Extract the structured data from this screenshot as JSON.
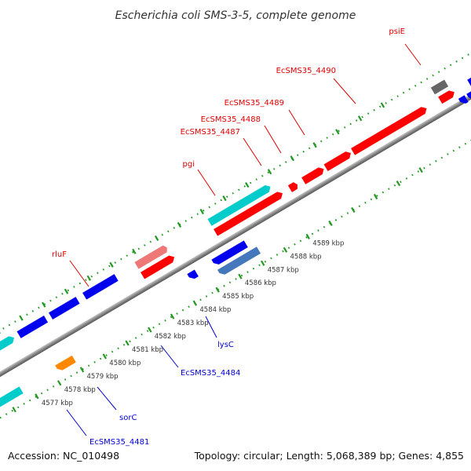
{
  "title": "Escherichia coli SMS-3-5, complete genome",
  "footer": {
    "accession": "Accession: NC_010498",
    "summary": "Topology: circular; Length: 5,068,389 bp; Genes: 4,855"
  },
  "kbp_labels": [
    "4577 kbp",
    "4578 kbp",
    "4579 kbp",
    "4580 kbp",
    "4581 kbp",
    "4582 kbp",
    "4583 kbp",
    "4584 kbp",
    "4585 kbp",
    "4586 kbp",
    "4587 kbp",
    "4588 kbp",
    "4589 kbp"
  ],
  "upper_labels": [
    {
      "text": "psiE"
    },
    {
      "text": "EcSMS35_4490"
    },
    {
      "text": "EcSMS35_4489"
    },
    {
      "text": "EcSMS35_4488"
    },
    {
      "text": "EcSMS35_4487"
    },
    {
      "text": "pgi"
    },
    {
      "text": "rluF"
    }
  ],
  "lower_labels": [
    {
      "text": "lysC"
    },
    {
      "text": "EcSMS35_4484"
    },
    {
      "text": "sorC"
    },
    {
      "text": "EcSMS35_4481"
    }
  ],
  "colors": {
    "forward_cds": "#ff0000",
    "reverse_cds": "#0000ee",
    "trna_like": "#00cccc",
    "light_red": "#ee7777",
    "steel_blue": "#4477bb",
    "orange": "#ff8800",
    "gray": "#666666",
    "backbone": "#888888",
    "ticks": "#229922",
    "upper_label": "#dd0000",
    "lower_label": "#0000cc"
  }
}
